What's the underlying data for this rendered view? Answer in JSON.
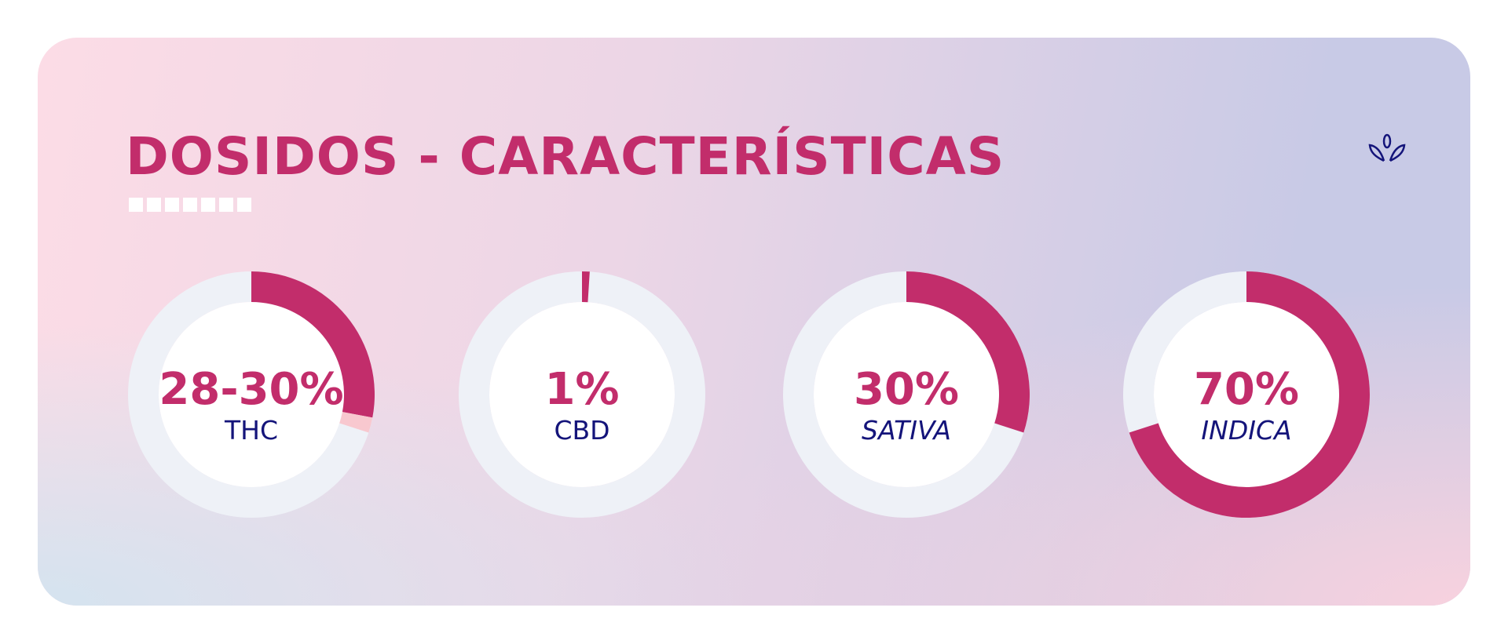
{
  "header": {
    "title": "DOSIDOS - CARACTERÍSTICAS"
  },
  "gauges": [
    {
      "value_label": "28-30%",
      "min": 28,
      "max": 30,
      "name": "THC"
    },
    {
      "value_label": "1%",
      "value": 1,
      "name": "CBD"
    },
    {
      "value_label": "30%",
      "value": 30,
      "name": "SATIVA"
    },
    {
      "value_label": "70%",
      "value": 70,
      "name": "INDICA"
    }
  ]
}
